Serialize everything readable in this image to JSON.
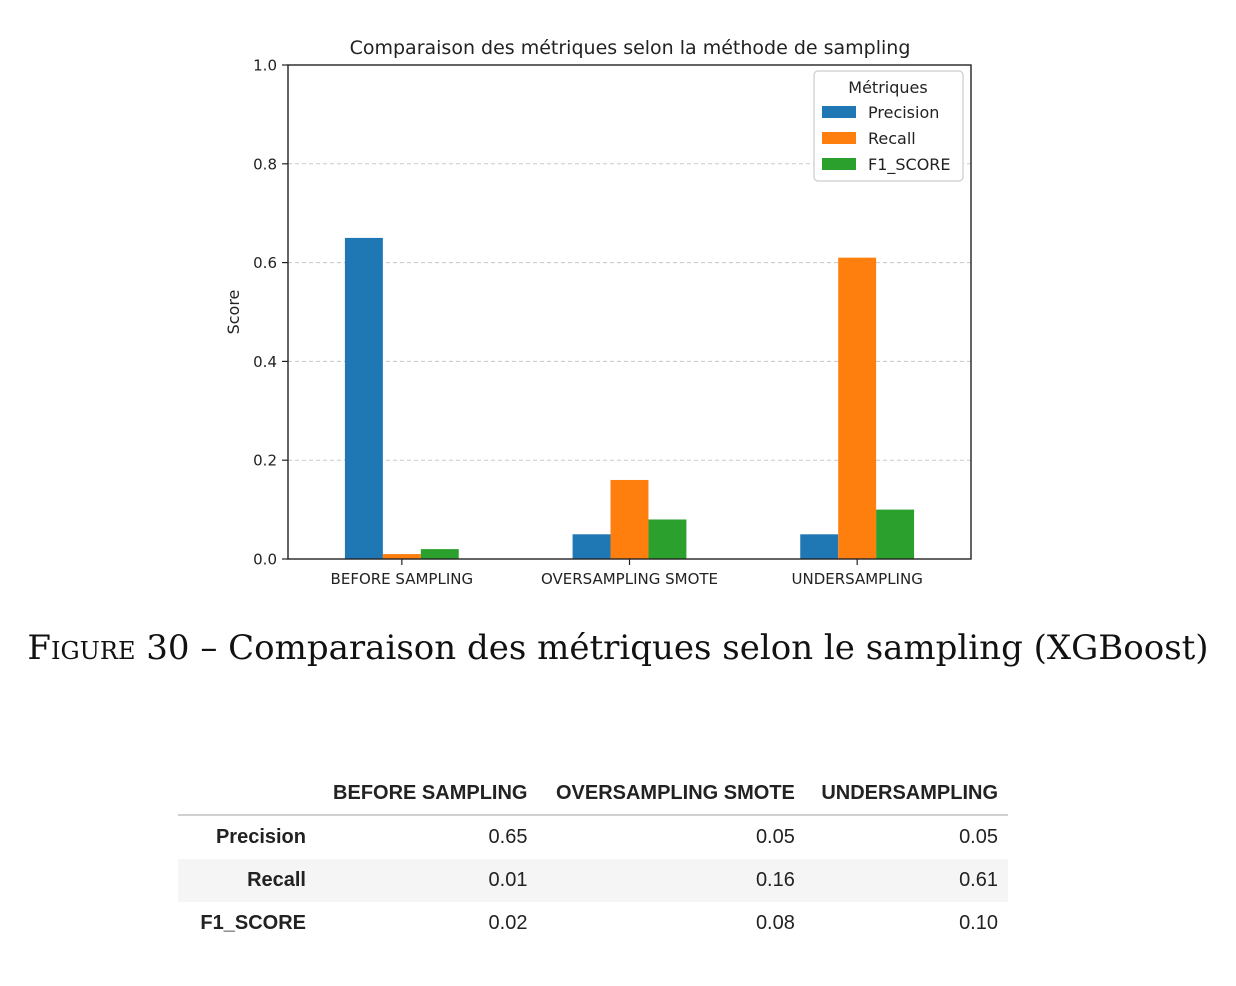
{
  "chart_data": {
    "type": "bar",
    "title": "Comparaison des métriques selon la méthode de sampling",
    "xlabel": "",
    "ylabel": "Score",
    "ylim": [
      0,
      1.0
    ],
    "yticks": [
      "0.0",
      "0.2",
      "0.4",
      "0.6",
      "0.8",
      "1.0"
    ],
    "grid": "y dashed",
    "legend": {
      "title": "Métriques",
      "placement": "top-right"
    },
    "categories": [
      "BEFORE SAMPLING",
      "OVERSAMPLING SMOTE",
      "UNDERSAMPLING"
    ],
    "series": [
      {
        "name": "Precision",
        "color": "#1f77b4",
        "values": [
          0.65,
          0.05,
          0.05
        ]
      },
      {
        "name": "Recall",
        "color": "#ff7f0e",
        "values": [
          0.01,
          0.16,
          0.61
        ]
      },
      {
        "name": "F1_SCORE",
        "color": "#2ca02c",
        "values": [
          0.02,
          0.08,
          0.1
        ]
      }
    ]
  },
  "caption": {
    "label": "Figure 30",
    "text": " – Comparaison des métriques selon le sampling (XGBoost)"
  },
  "table": {
    "columns": [
      "",
      "BEFORE SAMPLING",
      "OVERSAMPLING SMOTE",
      "UNDERSAMPLING"
    ],
    "rows": [
      {
        "label": "Precision",
        "values": [
          "0.65",
          "0.05",
          "0.05"
        ]
      },
      {
        "label": "Recall",
        "values": [
          "0.01",
          "0.16",
          "0.61"
        ]
      },
      {
        "label": "F1_SCORE",
        "values": [
          "0.02",
          "0.08",
          "0.10"
        ]
      }
    ]
  }
}
